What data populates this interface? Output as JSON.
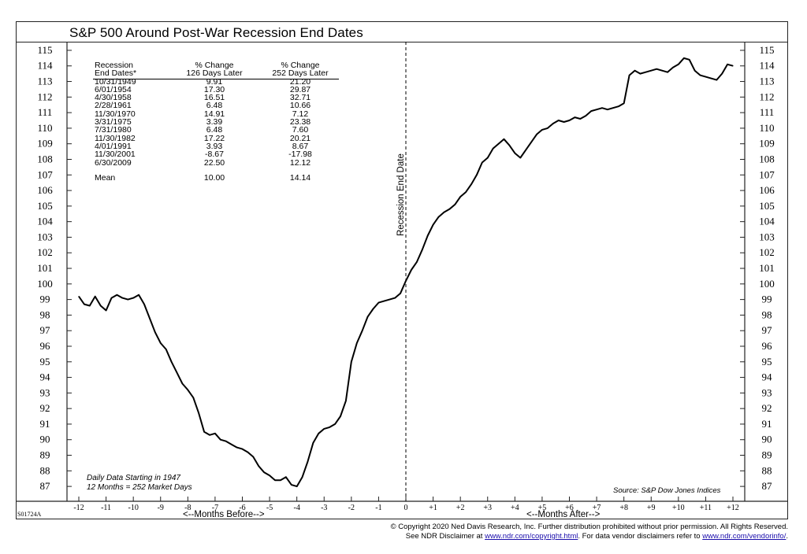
{
  "title": "S&P 500 Around Post-War Recession End Dates",
  "series_code": "S01724A",
  "recession_label": "Recession End Date",
  "months_before_label": "<--Months Before-->",
  "months_after_label": "<--Months After-->",
  "note_line1": "Daily Data Starting in 1947",
  "note_line2": "12 Months = 252 Market Days",
  "source": "Source: S&P Dow Jones Indices",
  "footer": {
    "line1": "© Copyright 2020 Ned Davis Research, Inc.  Further distribution prohibited without prior permission.  All Rights Reserved.",
    "line2_pre": "See NDR Disclaimer at ",
    "link1": "www.ndr.com/copyright.html",
    "line2_mid": ". For data vendor disclaimers refer to ",
    "link2": "www.ndr.com/vendorinfo/",
    "line2_post": "."
  },
  "table": {
    "headers": [
      [
        "Recession",
        "% Change",
        "% Change"
      ],
      [
        "End Dates*",
        "126 Days Later",
        "252 Days Later"
      ]
    ],
    "rows": [
      [
        "10/31/1949",
        "9.91",
        "21.20"
      ],
      [
        "6/01/1954",
        "17.30",
        "29.87"
      ],
      [
        "4/30/1958",
        "16.51",
        "32.71"
      ],
      [
        "2/28/1961",
        "6.48",
        "10.66"
      ],
      [
        "11/30/1970",
        "14.91",
        "7.12"
      ],
      [
        "3/31/1975",
        "3.39",
        "23.38"
      ],
      [
        "7/31/1980",
        "6.48",
        "7.60"
      ],
      [
        "11/30/1982",
        "17.22",
        "20.21"
      ],
      [
        "4/01/1991",
        "3.93",
        "8.67"
      ],
      [
        "11/30/2001",
        "-8.67",
        "-17.98"
      ],
      [
        "6/30/2009",
        "22.50",
        "12.12"
      ]
    ],
    "mean": [
      "Mean",
      "10.00",
      "14.14"
    ]
  },
  "chart_data": {
    "type": "line",
    "xlabel": "<--Months Before-->  <--Months After-->",
    "ylabel": "",
    "xlim": [
      -12,
      12
    ],
    "ylim": [
      86.5,
      115.2
    ],
    "x_ticks": [
      "-12",
      "-11",
      "-10",
      "-9",
      "-8",
      "-7",
      "-6",
      "-5",
      "-4",
      "-3",
      "-2",
      "-1",
      "0",
      "+1",
      "+2",
      "+3",
      "+4",
      "+5",
      "+6",
      "+7",
      "+8",
      "+9",
      "+10",
      "+11",
      "+12"
    ],
    "y_ticks": [
      87,
      88,
      89,
      90,
      91,
      92,
      93,
      94,
      95,
      96,
      97,
      98,
      99,
      100,
      101,
      102,
      103,
      104,
      105,
      106,
      107,
      108,
      109,
      110,
      111,
      112,
      113,
      114,
      115
    ],
    "vertical_marker_x": 0,
    "line_color": "#000000",
    "series": [
      {
        "name": "",
        "x": [
          -12,
          -11.8,
          -11.6,
          -11.4,
          -11.2,
          -11,
          -10.8,
          -10.6,
          -10.4,
          -10.2,
          -10,
          -9.8,
          -9.6,
          -9.4,
          -9.2,
          -9,
          -8.8,
          -8.6,
          -8.4,
          -8.2,
          -8,
          -7.8,
          -7.6,
          -7.4,
          -7.2,
          -7,
          -6.8,
          -6.6,
          -6.4,
          -6.2,
          -6,
          -5.8,
          -5.6,
          -5.4,
          -5.2,
          -5,
          -4.8,
          -4.6,
          -4.4,
          -4.2,
          -4,
          -3.8,
          -3.6,
          -3.4,
          -3.2,
          -3,
          -2.8,
          -2.6,
          -2.4,
          -2.2,
          -2,
          -1.8,
          -1.6,
          -1.4,
          -1.2,
          -1,
          -0.8,
          -0.6,
          -0.4,
          -0.2,
          0,
          0.2,
          0.4,
          0.6,
          0.8,
          1,
          1.2,
          1.4,
          1.6,
          1.8,
          2,
          2.2,
          2.4,
          2.6,
          2.8,
          3,
          3.2,
          3.4,
          3.6,
          3.8,
          4,
          4.2,
          4.4,
          4.6,
          4.8,
          5,
          5.2,
          5.4,
          5.6,
          5.8,
          6,
          6.2,
          6.4,
          6.6,
          6.8,
          7,
          7.2,
          7.4,
          7.6,
          7.8,
          8,
          8.2,
          8.4,
          8.6,
          8.8,
          9,
          9.2,
          9.4,
          9.6,
          9.8,
          10,
          10.2,
          10.4,
          10.6,
          10.8,
          11,
          11.2,
          11.4,
          11.6,
          11.8,
          12
        ],
        "y": [
          99.2,
          98.7,
          98.6,
          99.2,
          98.6,
          98.3,
          99.1,
          99.3,
          99.1,
          99.0,
          99.1,
          99.3,
          98.7,
          97.8,
          96.9,
          96.2,
          95.8,
          95.0,
          94.3,
          93.6,
          93.2,
          92.7,
          91.7,
          90.5,
          90.3,
          90.4,
          90.0,
          89.9,
          89.7,
          89.5,
          89.4,
          89.2,
          88.9,
          88.3,
          87.9,
          87.7,
          87.4,
          87.4,
          87.6,
          87.1,
          87.0,
          87.6,
          88.6,
          89.8,
          90.4,
          90.7,
          90.8,
          91.0,
          91.5,
          92.5,
          95.0,
          96.2,
          97.0,
          97.9,
          98.4,
          98.8,
          98.9,
          99.0,
          99.1,
          99.4,
          100.2,
          100.9,
          101.4,
          102.2,
          103.1,
          103.8,
          104.3,
          104.6,
          104.8,
          105.1,
          105.6,
          105.9,
          106.4,
          107.0,
          107.8,
          108.1,
          108.7,
          109.0,
          109.3,
          108.9,
          108.4,
          108.1,
          108.6,
          109.1,
          109.6,
          109.9,
          110.0,
          110.3,
          110.5,
          110.4,
          110.5,
          110.7,
          110.6,
          110.8,
          111.1,
          111.2,
          111.3,
          111.2,
          111.3,
          111.4,
          111.6,
          113.4,
          113.7,
          113.5,
          113.6,
          113.7,
          113.8,
          113.7,
          113.6,
          113.9,
          114.1,
          114.5,
          114.4,
          113.7,
          113.4,
          113.3,
          113.2,
          113.1,
          113.5,
          114.1,
          114.0
        ]
      }
    ]
  }
}
